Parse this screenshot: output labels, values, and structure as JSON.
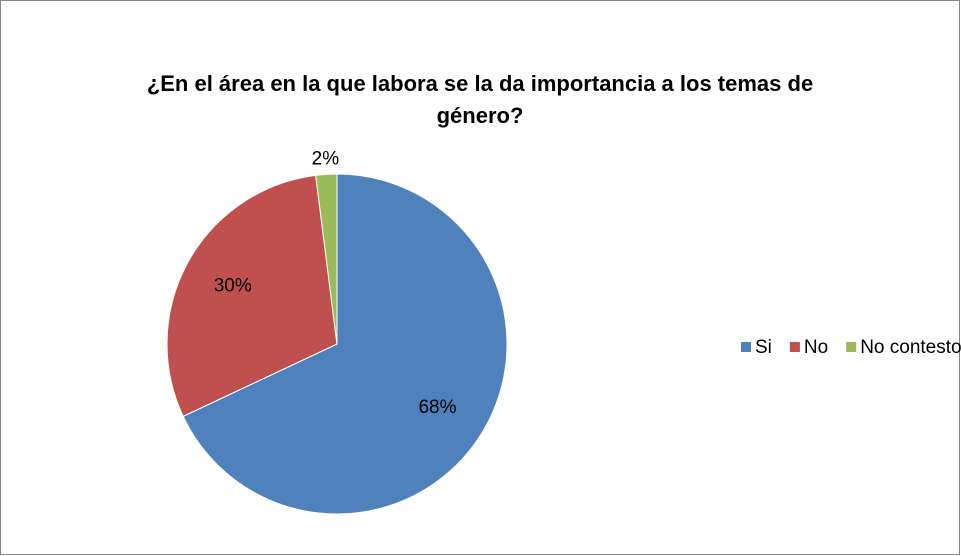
{
  "chart_data": {
    "type": "pie",
    "title": "¿En el área en la que labora se la da importancia a los temas de género?",
    "categories": [
      "Si",
      "No",
      "No contesto"
    ],
    "values": [
      68,
      30,
      2
    ],
    "value_labels": [
      "68%",
      "30%",
      "2%"
    ],
    "colors": [
      "#4f81bd",
      "#c0504d",
      "#9bbb59"
    ],
    "legend": "right"
  }
}
